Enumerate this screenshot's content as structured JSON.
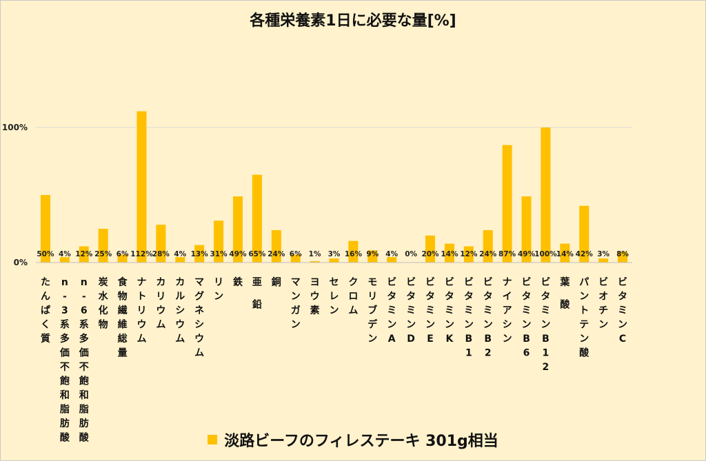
{
  "chart_data": {
    "type": "bar",
    "title": "各種栄養素1日に必要な量[%]",
    "categories": [
      "たんぱく質",
      "n-3系多価不飽和脂肪酸",
      "n-6系多価不飽和脂肪酸",
      "炭水化物",
      "食物繊維総量",
      "ナトリウム",
      "カリウム",
      "カルシウム",
      "マグネシウム",
      "リン",
      "鉄",
      "亜 鉛",
      "銅",
      "マンガン",
      "ヨウ素",
      "セレン",
      "クロム",
      "モリブデン",
      "ビタミンA",
      "ビタミンD",
      "ビタミンE",
      "ビタミンK",
      "ビタミンB1",
      "ビタミンB2",
      "ナイアシン",
      "ビタミンB6",
      "ビタミンB12",
      "葉 酸",
      "パントテン酸",
      "ビオチン",
      "ビタミンC"
    ],
    "series": [
      {
        "name": "淡路ビーフのフィレステーキ 301g相当",
        "values": [
          50,
          4,
          12,
          25,
          6,
          112,
          28,
          4,
          13,
          31,
          49,
          65,
          24,
          6,
          1,
          3,
          16,
          9,
          4,
          0,
          20,
          14,
          12,
          24,
          87,
          49,
          100,
          14,
          42,
          3,
          8
        ],
        "data_labels": [
          "50%",
          "4%",
          "12%",
          "25%",
          "6%",
          "112%",
          "28%",
          "4%",
          "13%",
          "31%",
          "49%",
          "65%",
          "24%",
          "6%",
          "1%",
          "3%",
          "16%",
          "9%",
          "4%",
          "0%",
          "20%",
          "14%",
          "12%",
          "24%",
          "87%",
          "49%",
          "100%",
          "14%",
          "42%",
          "3%",
          "8%"
        ]
      }
    ],
    "yticks": [
      {
        "value": 0,
        "label": "0%"
      },
      {
        "value": 100,
        "label": "100%"
      }
    ],
    "ylim": [
      0,
      200
    ],
    "grid": true,
    "legend_position": "bottom",
    "colors": {
      "bar": "#ffc000",
      "background": "#fff2cc",
      "grid": "#d9d9d9"
    }
  }
}
